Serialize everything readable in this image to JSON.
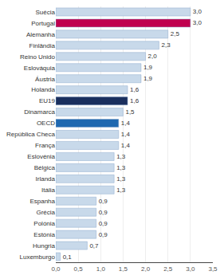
{
  "chart_data": {
    "type": "bar",
    "orientation": "horizontal",
    "categories": [
      "Suécia",
      "Portugal",
      "Alemanha",
      "Finlândia",
      "Reino Unido",
      "Eslováquia",
      "Áustria",
      "Holanda",
      "EU19",
      "Dinamarca",
      "OECD",
      "República Checa",
      "França",
      "Eslovénia",
      "Bélgica",
      "Irlanda",
      "Itália",
      "Espanha",
      "Grécia",
      "Polónia",
      "Estónia",
      "Hungria",
      "Luxemburgo"
    ],
    "values": [
      3.0,
      3.0,
      2.5,
      2.3,
      2.0,
      1.9,
      1.9,
      1.6,
      1.6,
      1.5,
      1.4,
      1.4,
      1.4,
      1.3,
      1.3,
      1.3,
      1.3,
      0.9,
      0.9,
      0.9,
      0.9,
      0.7,
      0.1
    ],
    "value_labels": [
      "3,0",
      "3,0",
      "2,5",
      "2,3",
      "2,0",
      "1,9",
      "1,9",
      "1,6",
      "1,6",
      "1,5",
      "1,4",
      "1,4",
      "1,4",
      "1,3",
      "1,3",
      "1,3",
      "1,3",
      "0,9",
      "0,9",
      "0,9",
      "0,9",
      "0,7",
      "0,1"
    ],
    "data_labels": true,
    "colors": [
      "#c8d9ea",
      "#c0004e",
      "#c8d9ea",
      "#c8d9ea",
      "#c8d9ea",
      "#c8d9ea",
      "#c8d9ea",
      "#c8d9ea",
      "#1a2f5e",
      "#c8d9ea",
      "#1f68b0",
      "#c8d9ea",
      "#c8d9ea",
      "#c8d9ea",
      "#c8d9ea",
      "#c8d9ea",
      "#c8d9ea",
      "#c8d9ea",
      "#c8d9ea",
      "#c8d9ea",
      "#c8d9ea",
      "#c8d9ea",
      "#c8d9ea"
    ],
    "xlim": [
      0,
      3.5
    ],
    "xticks": [
      {
        "value": 0.0,
        "label": "0,0"
      },
      {
        "value": 0.5,
        "label": "0,5"
      },
      {
        "value": 1.0,
        "label": "1,0"
      },
      {
        "value": 1.5,
        "label": "1,5"
      },
      {
        "value": 2.0,
        "label": "2,0"
      },
      {
        "value": 2.5,
        "label": "2,5"
      },
      {
        "value": 3.0,
        "label": "3,0"
      },
      {
        "value": 3.5,
        "label": "3,5"
      }
    ],
    "grid": true
  }
}
